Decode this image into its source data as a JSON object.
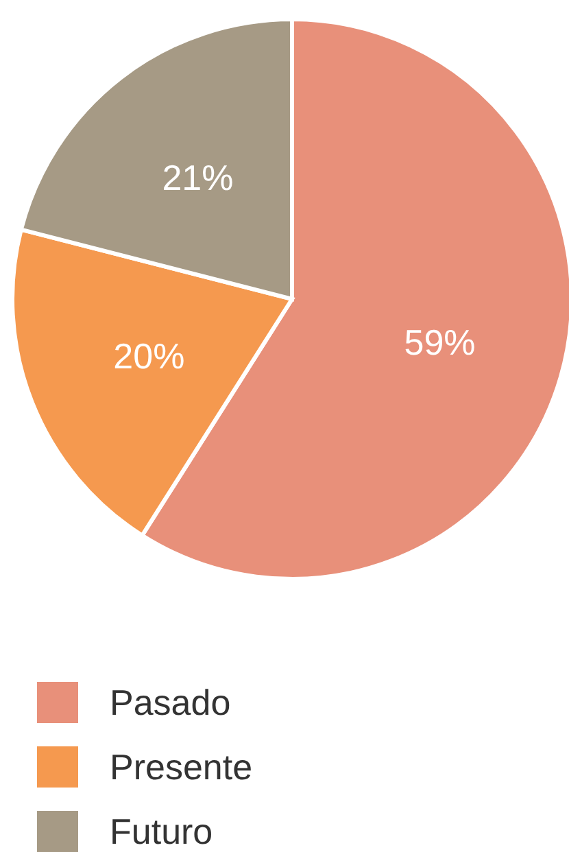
{
  "chart_data": {
    "type": "pie",
    "categories": [
      "Pasado",
      "Presente",
      "Futuro"
    ],
    "values": [
      59,
      20,
      21
    ],
    "colors": [
      "#e8907a",
      "#f5994f",
      "#a69a85"
    ],
    "value_labels": [
      "59%",
      "20%",
      "21%"
    ],
    "legend": "bottom"
  }
}
